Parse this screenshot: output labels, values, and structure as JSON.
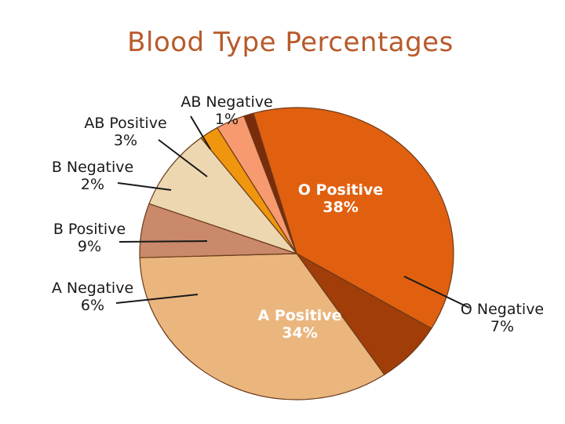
{
  "chart_data": {
    "type": "pie",
    "title": "Blood Type Percentages",
    "slices": [
      {
        "label": "O Positive",
        "value_text": "38%",
        "value": 38,
        "color": "#e0600f"
      },
      {
        "label": "O Negative",
        "value_text": "7%",
        "value": 7,
        "color": "#a03d08"
      },
      {
        "label": "A Positive",
        "value_text": "34%",
        "value": 34,
        "color": "#eab67e"
      },
      {
        "label": "A Negative",
        "value_text": "6%",
        "value": 6,
        "color": "#c9896a"
      },
      {
        "label": "B Positive",
        "value_text": "9%",
        "value": 9,
        "color": "#ecd7b0"
      },
      {
        "label": "B Negative",
        "value_text": "2%",
        "value": 2,
        "color": "#f0960e"
      },
      {
        "label": "AB Positive",
        "value_text": "3%",
        "value": 3,
        "color": "#f79a70"
      },
      {
        "label": "AB Negative",
        "value_text": "1%",
        "value": 1,
        "color": "#7a2c0a"
      }
    ]
  }
}
